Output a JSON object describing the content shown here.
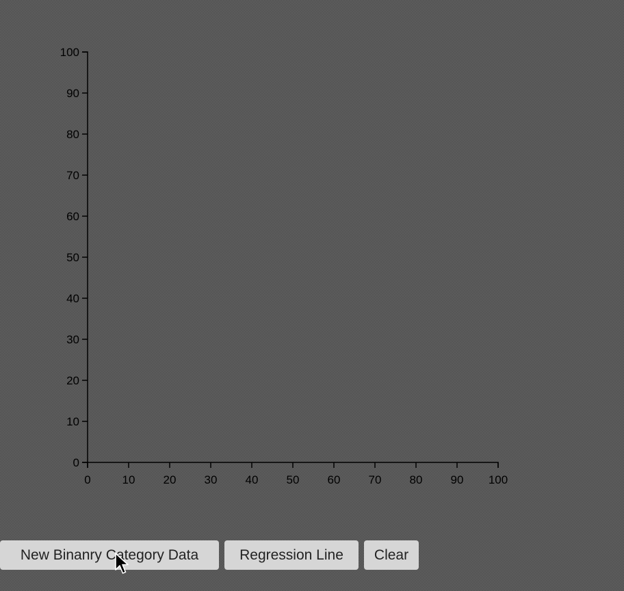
{
  "chart_data": {
    "type": "scatter",
    "title": "",
    "xlabel": "",
    "ylabel": "",
    "xlim": [
      0,
      100
    ],
    "ylim": [
      0,
      100
    ],
    "x_ticks": [
      "0",
      "10",
      "20",
      "30",
      "40",
      "50",
      "60",
      "70",
      "80",
      "90",
      "100"
    ],
    "y_ticks": [
      "0",
      "10",
      "20",
      "30",
      "40",
      "50",
      "60",
      "70",
      "80",
      "90",
      "100"
    ],
    "points": [],
    "grid": false
  },
  "toolbar": {
    "new_data_label": "New Binanry Category Data",
    "regression_label": "Regression Line",
    "clear_label": "Clear"
  },
  "cursor": {
    "icon": "arrow-pointer-icon"
  }
}
